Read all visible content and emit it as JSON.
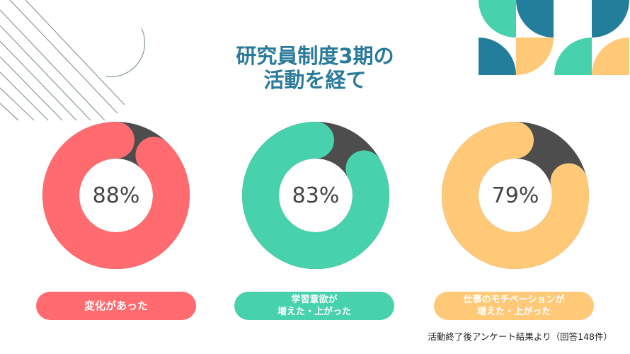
{
  "title": {
    "line1": "研究員制度3期の",
    "line2": "活動を経て"
  },
  "colors": {
    "title": "#2a7a9a",
    "remainder": "#4d4d4d",
    "red": "#ff6b6e",
    "green": "#47d1ad",
    "yellow": "#ffc978",
    "teal_dark": "#237e9c"
  },
  "chart_data": [
    {
      "type": "pie",
      "value": 88,
      "label": "88%",
      "category": "変化があった",
      "color": "#ff6b6e"
    },
    {
      "type": "pie",
      "value": 83,
      "label": "83%",
      "category": "学習意欲が 増えた・上がった",
      "category_lines": [
        "学習意欲が",
        "増えた・上がった"
      ],
      "color": "#47d1ad"
    },
    {
      "type": "pie",
      "value": 79,
      "label": "79%",
      "category": "仕事のモチベーションが 増えた・上がった",
      "category_lines": [
        "仕事のモチベーションが",
        "増えた・上がった"
      ],
      "color": "#ffc978"
    }
  ],
  "footnote": "活動終了後アンケート結果より（回答148件）"
}
